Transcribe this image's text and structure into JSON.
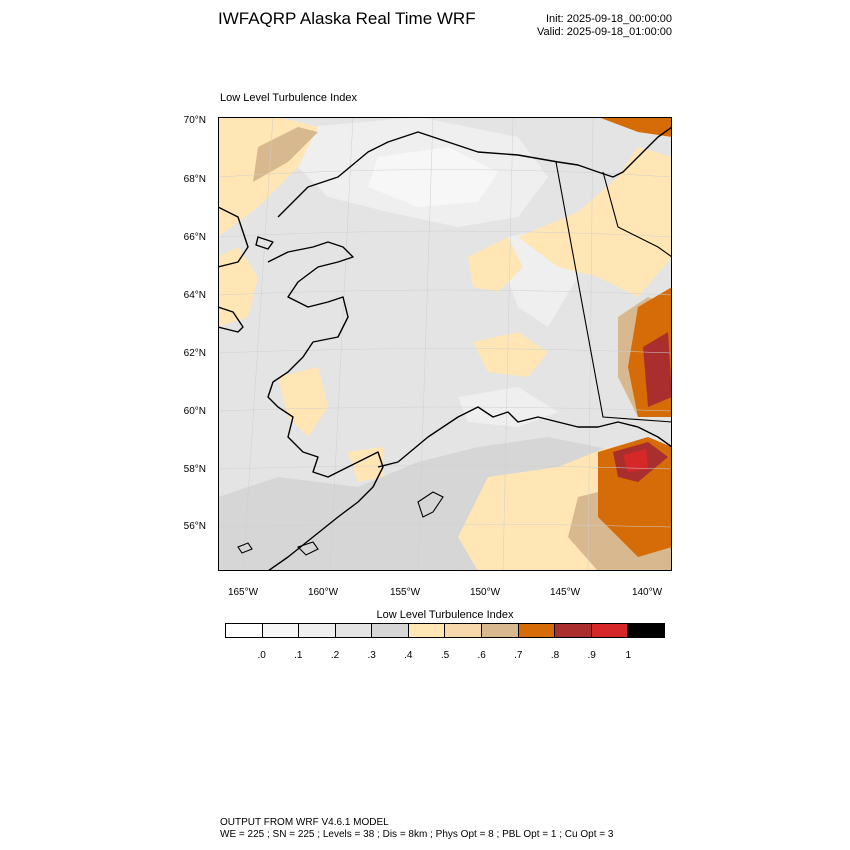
{
  "header": {
    "title": "IWFAQRP Alaska Real Time WRF",
    "init": "Init: 2025-09-18_00:00:00",
    "valid": "Valid: 2025-09-18_01:00:00"
  },
  "map": {
    "subtitle": "Low Level Turbulence Index",
    "lat_labels": [
      "70°N",
      "68°N",
      "66°N",
      "64°N",
      "62°N",
      "60°N",
      "58°N",
      "56°N"
    ],
    "lon_labels": [
      "165°W",
      "160°W",
      "155°W",
      "150°W",
      "145°W",
      "140°W"
    ]
  },
  "colorbar": {
    "title": "Low Level Turbulence Index",
    "colors": [
      "#ffffff",
      "#f7f7f7",
      "#efefef",
      "#e4e4e4",
      "#d6d6d6",
      "#ffe6b4",
      "#f6d8ac",
      "#d8b88f",
      "#d66c08",
      "#ab2e2e",
      "#d62828",
      "#000000"
    ],
    "labels": [
      ".0",
      ".1",
      ".2",
      ".3",
      ".4",
      ".5",
      ".6",
      ".7",
      ".8",
      ".9",
      "1"
    ]
  },
  "footer": {
    "line1": "OUTPUT FROM WRF V4.6.1 MODEL",
    "line2": "WE = 225 ; SN = 225 ; Levels = 38 ; Dis = 8km ; Phys Opt = 8 ; PBL Opt = 1 ; Cu Opt = 3"
  }
}
